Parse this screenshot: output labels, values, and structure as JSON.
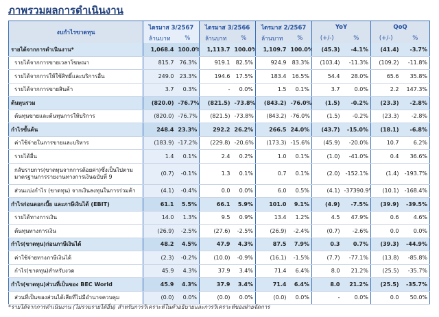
{
  "title": "ภาพรวมผลการดำเนินงาน",
  "table": {
    "columns": [
      "งบกำไรขาดทุน",
      "ไตรมาส 3/2567",
      "ไตรมาส 3/2566",
      "ไตรมาส 2/2567",
      "YoY",
      "QoQ"
    ],
    "units": [
      "ล้านบาท",
      "%",
      "ล้านบาท",
      "%",
      "ล้านบาท",
      "%",
      "(+/-)",
      "%",
      "(+/-)",
      "%"
    ],
    "rows": [
      {
        "label": "รายได้จากการดำเนินงาน*",
        "highlight": true,
        "cells": [
          "1,068.4",
          "100.0%",
          "1,113.7",
          "100.0%",
          "1,109.7",
          "100.0%",
          "(45.3)",
          "-4.1%",
          "(41.4)",
          "-3.7%"
        ]
      },
      {
        "label": "รายได้จากการขายเวลาโฆษณา",
        "cells": [
          "815.7",
          "76.3%",
          "919.1",
          "82.5%",
          "924.9",
          "83.3%",
          "(103.4)",
          "-11.3%",
          "(109.2)",
          "-11.8%"
        ]
      },
      {
        "label": "รายได้จากการให้ใช้สิทธิ์และบริการอื่น",
        "cells": [
          "249.0",
          "23.3%",
          "194.6",
          "17.5%",
          "183.4",
          "16.5%",
          "54.4",
          "28.0%",
          "65.6",
          "35.8%"
        ]
      },
      {
        "label": "รายได้จากการขายสินค้า",
        "cells": [
          "3.7",
          "0.3%",
          "-",
          "0.0%",
          "1.5",
          "0.1%",
          "3.7",
          "0.0%",
          "2.2",
          "147.3%"
        ]
      },
      {
        "label": "ต้นทุนรวม",
        "highlight": true,
        "cells": [
          "(820.0)",
          "-76.7%",
          "(821.5)",
          "-73.8%",
          "(843.2)",
          "-76.0%",
          "(1.5)",
          "-0.2%",
          "(23.3)",
          "-2.8%"
        ]
      },
      {
        "label": "ต้นทุนขายและต้นทุนการให้บริการ",
        "cells": [
          "(820.0)",
          "-76.7%",
          "(821.5)",
          "-73.8%",
          "(843.2)",
          "-76.0%",
          "(1.5)",
          "-0.2%",
          "(23.3)",
          "-2.8%"
        ]
      },
      {
        "label": "กำไรขั้นต้น",
        "highlight": true,
        "cells": [
          "248.4",
          "23.3%",
          "292.2",
          "26.2%",
          "266.5",
          "24.0%",
          "(43.7)",
          "-15.0%",
          "(18.1)",
          "-6.8%"
        ]
      },
      {
        "label": "ค่าใช้จ่ายในการขายและบริหาร",
        "cells": [
          "(183.9)",
          "-17.2%",
          "(229.8)",
          "-20.6%",
          "(173.3)",
          "-15.6%",
          "(45.9)",
          "-20.0%",
          "10.7",
          "6.2%"
        ]
      },
      {
        "label": "รายได้อื่น",
        "cells": [
          "1.4",
          "0.1%",
          "2.4",
          "0.2%",
          "1.0",
          "0.1%",
          "(1.0)",
          "-41.0%",
          "0.4",
          "36.6%"
        ]
      },
      {
        "label": "กลับรายการ(ขาดทุนจากการด้อยค่า)ซึ่งเป็นไปตามมาตรฐานการรายงานทางการเงินฉบับที่ 9",
        "cells": [
          "(0.7)",
          "-0.1%",
          "1.3",
          "0.1%",
          "0.7",
          "0.1%",
          "(2.0)",
          "-152.1%",
          "(1.4)",
          "-193.7%"
        ]
      },
      {
        "label": "ส่วนแบ่งกำไร (ขาดทุน) จากเงินลงทุนในการร่วมค้า",
        "cells": [
          "(4.1)",
          "-0.4%",
          "0.0",
          "0.0%",
          "6.0",
          "0.5%",
          "(4.1)",
          "-37390.9%",
          "(10.1)",
          "-168.4%"
        ]
      },
      {
        "label": "กำไรก่อนดอกเบี้ย และภาษีเงินได้ (EBIT)",
        "highlight": true,
        "cells": [
          "61.1",
          "5.5%",
          "66.1",
          "5.9%",
          "101.0",
          "9.1%",
          "(4.9)",
          "-7.5%",
          "(39.9)",
          "-39.5%"
        ]
      },
      {
        "label": "รายได้ทางการเงิน",
        "cells": [
          "14.0",
          "1.3%",
          "9.5",
          "0.9%",
          "13.4",
          "1.2%",
          "4.5",
          "47.9%",
          "0.6",
          "4.6%"
        ]
      },
      {
        "label": "ต้นทุนทางการเงิน",
        "cells": [
          "(26.9)",
          "-2.5%",
          "(27.6)",
          "-2.5%",
          "(26.9)",
          "-2.4%",
          "(0.7)",
          "-2.6%",
          "0.0",
          "0.0%"
        ]
      },
      {
        "label": "กำไร(ขาดทุน)ก่อนภาษีเงินได้",
        "highlight": true,
        "cells": [
          "48.2",
          "4.5%",
          "47.9",
          "4.3%",
          "87.5",
          "7.9%",
          "0.3",
          "0.7%",
          "(39.3)",
          "-44.9%"
        ]
      },
      {
        "label": "ค่าใช้จ่ายทางภาษีเงินได้",
        "cells": [
          "(2.3)",
          "-0.2%",
          "(10.0)",
          "-0.9%",
          "(16.1)",
          "-1.5%",
          "(7.7)",
          "-77.1%",
          "(13.8)",
          "-85.8%"
        ]
      },
      {
        "label": "กำไร(ขาดทุน)สำหรับงวด",
        "cells": [
          "45.9",
          "4.3%",
          "37.9",
          "3.4%",
          "71.4",
          "6.4%",
          "8.0",
          "21.2%",
          "(25.5)",
          "-35.7%"
        ]
      },
      {
        "label": "กำไร(ขาดทุน)ส่วนที่เป็นของ BEC World",
        "highlight": true,
        "cells": [
          "45.9",
          "4.3%",
          "37.9",
          "3.4%",
          "71.4",
          "6.4%",
          "8.0",
          "21.2%",
          "(25.5)",
          "-35.7%"
        ]
      },
      {
        "label": "ส่วนที่เป็นของส่วนได้เสียที่ไม่มีอำนาจควบคุม",
        "cells": [
          "(0.0)",
          "0.0%",
          "(0.0)",
          "0.0%",
          "(0.0)",
          "0.0%",
          "-",
          "0.0%",
          "0.0",
          "50.0%"
        ]
      }
    ]
  },
  "footnote": "*รายได้จากการดำเนินงาน (ไม่รวมรายได้อื่น) สำหรับการวิเคราะห์ในคำอธิบายและการวิเคราะห์ของฝ่ายจัดการ"
}
